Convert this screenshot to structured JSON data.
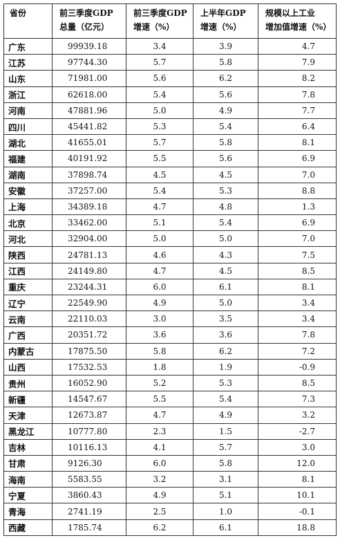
{
  "headers": [
    {
      "line1": "省份",
      "line2": ""
    },
    {
      "line1": "前三季度GDP",
      "line2": "总量（亿元）"
    },
    {
      "line1": "前三季度GDP",
      "line2": "增速（%）"
    },
    {
      "line1": "上半年GDP",
      "line2": "增速（%）"
    },
    {
      "line1": "规模以上工业",
      "line2": "增加值增速（%）"
    }
  ],
  "rows": [
    [
      "广东",
      "99939.18",
      "3.4",
      "3.9",
      "4.7"
    ],
    [
      "江苏",
      "97744.30",
      "5.7",
      "5.8",
      "7.9"
    ],
    [
      "山东",
      "71981.00",
      "5.6",
      "6.2",
      "8.2"
    ],
    [
      "浙江",
      "62618.00",
      "5.4",
      "5.6",
      "7.8"
    ],
    [
      "河南",
      "47881.96",
      "5.0",
      "4.9",
      "7.7"
    ],
    [
      "四川",
      "45441.82",
      "5.3",
      "5.4",
      "6.4"
    ],
    [
      "湖北",
      "41655.01",
      "5.7",
      "5.8",
      "8.1"
    ],
    [
      "福建",
      "40191.92",
      "5.5",
      "5.6",
      "6.9"
    ],
    [
      "湖南",
      "37898.74",
      "4.5",
      "4.5",
      "7.0"
    ],
    [
      "安徽",
      "37257.00",
      "5.4",
      "5.3",
      "8.8"
    ],
    [
      "上海",
      "34389.18",
      "4.7",
      "4.8",
      "1.3"
    ],
    [
      "北京",
      "33462.00",
      "5.1",
      "5.4",
      "6.9"
    ],
    [
      "河北",
      "32904.00",
      "5.0",
      "5.0",
      "7.0"
    ],
    [
      "陕西",
      "24781.13",
      "4.6",
      "4.3",
      "7.5"
    ],
    [
      "江西",
      "24149.80",
      "4.7",
      "4.5",
      "8.5"
    ],
    [
      "重庆",
      "23244.31",
      "6.0",
      "6.1",
      "8.1"
    ],
    [
      "辽宁",
      "22549.90",
      "4.9",
      "5.0",
      "3.4"
    ],
    [
      "云南",
      "22110.03",
      "3.0",
      "3.5",
      "3.4"
    ],
    [
      "广西",
      "20351.72",
      "3.6",
      "3.6",
      "7.8"
    ],
    [
      "内蒙古",
      "17875.50",
      "5.8",
      "6.2",
      "7.2"
    ],
    [
      "山西",
      "17532.53",
      "1.8",
      "1.9",
      "-0.9"
    ],
    [
      "贵州",
      "16052.90",
      "5.2",
      "5.3",
      "8.5"
    ],
    [
      "新疆",
      "14547.67",
      "5.5",
      "5.4",
      "7.3"
    ],
    [
      "天津",
      "12673.87",
      "4.7",
      "4.9",
      "3.2"
    ],
    [
      "黑龙江",
      "10777.80",
      "2.3",
      "1.5",
      "-2.7"
    ],
    [
      "吉林",
      "10116.13",
      "4.1",
      "5.7",
      "3.0"
    ],
    [
      "甘肃",
      "9126.30",
      "6.0",
      "5.8",
      "12.0"
    ],
    [
      "海南",
      "5583.55",
      "3.2",
      "3.1",
      "8.1"
    ],
    [
      "宁夏",
      "3860.43",
      "4.9",
      "5.1",
      "10.1"
    ],
    [
      "青海",
      "2741.19",
      "2.5",
      "1.0",
      "-0.1"
    ],
    [
      "西藏",
      "1785.74",
      "6.2",
      "6.1",
      "18.8"
    ]
  ]
}
